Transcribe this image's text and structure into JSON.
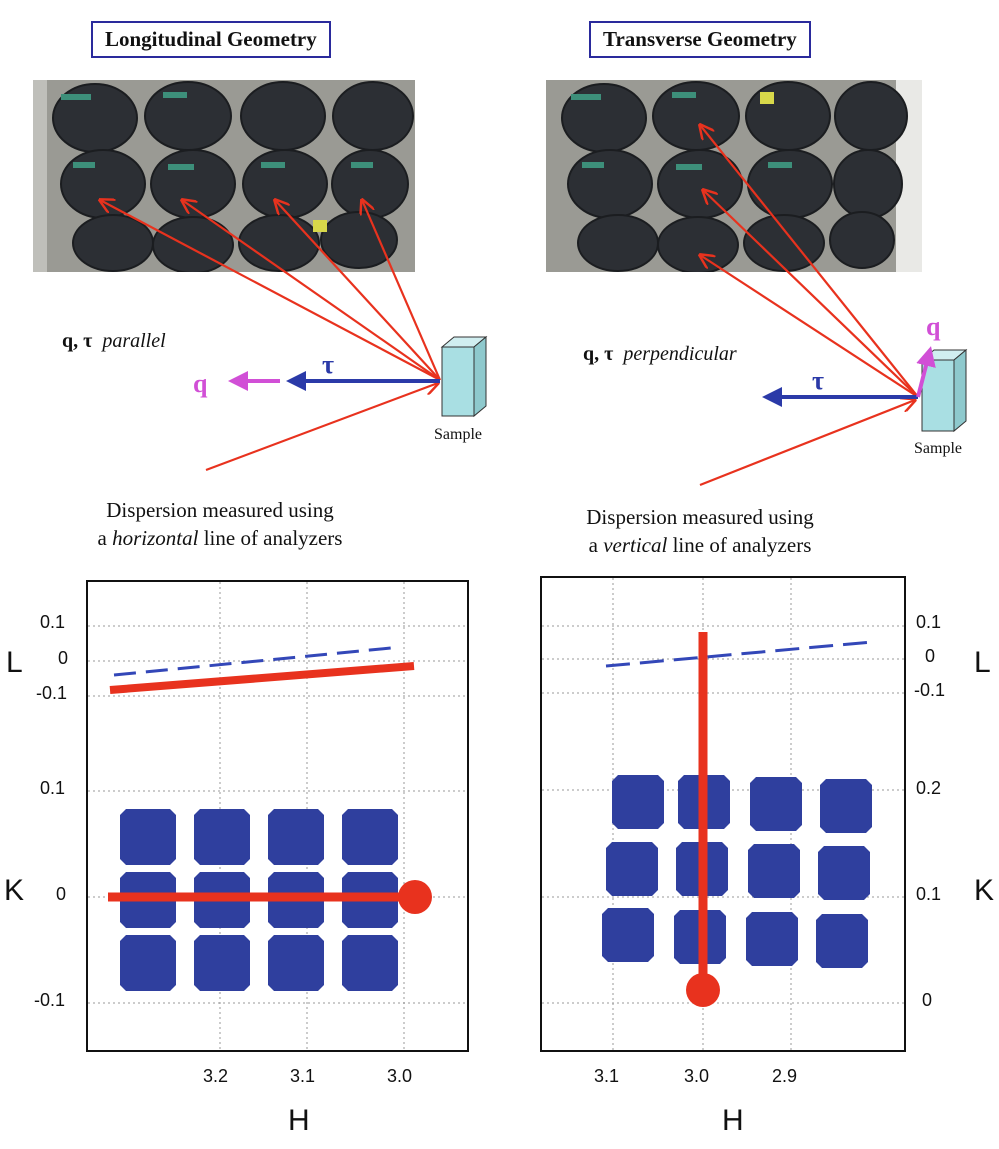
{
  "left": {
    "title": "Longitudinal Geometry",
    "relation_bold": "q, τ",
    "relation_italic": "parallel",
    "q_label": "q",
    "tau_label": "τ",
    "sample_label": "Sample",
    "caption_line1": "Dispersion measured using",
    "caption_line2_pre": "a ",
    "caption_line2_italic": "horizontal",
    "caption_line2_post": " line of analyzers"
  },
  "right": {
    "title": "Transverse Geometry",
    "relation_bold": "q, τ",
    "relation_italic": "perpendicular",
    "q_label": "q",
    "tau_label": "τ",
    "sample_label": "Sample",
    "caption_line1": "Dispersion measured using",
    "caption_line2_pre": "a ",
    "caption_line2_italic": "vertical",
    "caption_line2_post": " line of analyzers"
  },
  "colors": {
    "red": "#e8321e",
    "blue_arrow": "#2b3aa8",
    "magenta": "#d14fd6",
    "analyzer_blue": "#2f3f9e",
    "dashed_line": "#3347b8",
    "sample_box": "#a9dfe3"
  },
  "chart_data": [
    {
      "type": "scatter",
      "title": "",
      "xlabel": "H",
      "top_ylabel": "L",
      "bottom_ylabel": "K",
      "x_ticks": [
        "3.2",
        "3.1",
        "3.0"
      ],
      "top_y_ticks": [
        "0.1",
        "0",
        "-0.1"
      ],
      "bottom_y_ticks": [
        "0.1",
        "0",
        "-0.1"
      ],
      "x_axis_reversed": true,
      "grid": true,
      "analyzer_grid": {
        "columns": 4,
        "rows": 3,
        "K_values": [
          0.07,
          0,
          -0.07
        ]
      },
      "scan_line": "horizontal",
      "scan_point": {
        "H": 3.0,
        "K": 0
      }
    },
    {
      "type": "scatter",
      "title": "",
      "xlabel": "H",
      "top_ylabel": "L",
      "bottom_ylabel": "K",
      "x_ticks": [
        "3.1",
        "3.0",
        "2.9"
      ],
      "top_y_ticks": [
        "0.1",
        "0",
        "-0.1"
      ],
      "bottom_y_ticks": [
        "0.2",
        "0.1",
        "0"
      ],
      "x_axis_reversed": true,
      "grid": true,
      "analyzer_grid": {
        "columns": 4,
        "rows": 3
      },
      "scan_line": "vertical",
      "scan_point": {
        "H": 3.0,
        "K": 0
      }
    }
  ]
}
